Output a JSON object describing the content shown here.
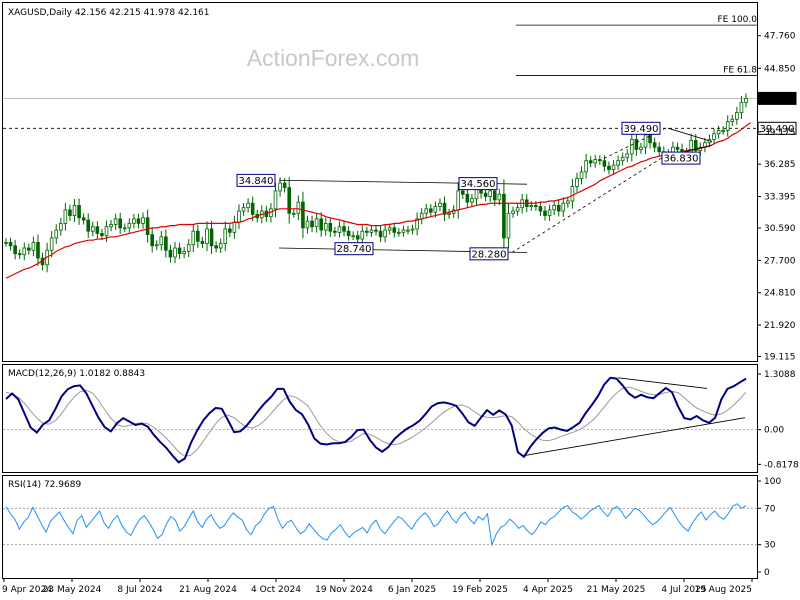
{
  "watermark": "ActionForex.com",
  "chart_data": [
    {
      "type": "candlestick",
      "title": "XAGUSD,Daily",
      "ohlc": {
        "open": "42.156",
        "high": "42.215",
        "low": "41.978",
        "close": "42.161"
      },
      "current_price": 42.161,
      "y_ticks": [
        19.115,
        21.92,
        24.81,
        27.7,
        30.59,
        33.395,
        36.285,
        39.175,
        44.85,
        47.76
      ],
      "ylim": [
        18.8,
        50.5
      ],
      "x_ticks": [
        "9 Apr 2024",
        "23 May 2024",
        "8 Jul 2024",
        "21 Aug 2024",
        "4 Oct 2024",
        "19 Nov 2024",
        "6 Jan 2025",
        "19 Feb 2025",
        "4 Apr 2025",
        "21 May 2025",
        "4 Jul 2025",
        "19 Aug 2025"
      ],
      "price_labels": [
        "34.840",
        "34.560",
        "28.740",
        "28.280",
        "39.490",
        "36.830",
        "39.490",
        "42.161"
      ],
      "fib_levels": [
        {
          "label": "FE 100.0",
          "value": 48.7
        },
        {
          "label": "FE 61.8",
          "value": 44.2
        }
      ],
      "close_series": [
        29.3,
        29.0,
        28.3,
        28.2,
        28.8,
        28.6,
        29.3,
        27.9,
        27.3,
        28.6,
        29.7,
        30.4,
        31.0,
        32.2,
        31.7,
        32.6,
        31.5,
        31.3,
        30.3,
        30.7,
        30.1,
        29.9,
        30.7,
        30.9,
        31.4,
        30.6,
        30.6,
        31.0,
        31.4,
        31.0,
        31.5,
        30.0,
        29.0,
        29.1,
        29.8,
        28.6,
        28.0,
        28.8,
        28.3,
        28.5,
        29.1,
        30.3,
        29.4,
        29.2,
        30.5,
        29.0,
        28.8,
        29.2,
        30.5,
        30.2,
        31.1,
        32.1,
        32.4,
        32.8,
        31.8,
        31.5,
        32.1,
        31.6,
        32.3,
        33.9,
        34.6,
        34.2,
        31.9,
        31.9,
        32.9,
        30.6,
        31.2,
        30.7,
        31.4,
        30.4,
        31.0,
        30.3,
        30.2,
        30.7,
        30.3,
        29.9,
        29.9,
        29.6,
        30.3,
        30.2,
        30.4,
        30.3,
        29.8,
        30.4,
        30.6,
        30.2,
        30.2,
        30.4,
        30.4,
        30.5,
        31.4,
        31.9,
        32.3,
        32.0,
        32.5,
        32.8,
        31.8,
        31.9,
        32.2,
        33.9,
        33.6,
        32.9,
        33.2,
        34.3,
        33.7,
        33.4,
        33.9,
        33.1,
        33.6,
        29.7,
        31.9,
        32.1,
        32.4,
        33.1,
        32.5,
        32.6,
        32.5,
        32.1,
        31.7,
        32.2,
        32.6,
        32.1,
        32.8,
        33.0,
        34.3,
        35.0,
        35.6,
        36.6,
        36.4,
        36.7,
        36.6,
        36.1,
        35.8,
        36.2,
        36.6,
        36.9,
        37.2,
        38.5,
        37.6,
        37.8,
        38.9,
        38.2,
        37.8,
        37.4,
        36.9,
        37.2,
        37.8,
        37.6,
        36.9,
        37.3,
        38.4,
        37.5,
        37.8,
        38.2,
        38.5,
        39.0,
        39.3,
        39.3,
        40.1,
        40.3,
        40.9,
        41.8,
        42.16
      ],
      "sma_series": [
        26.1,
        26.3,
        26.5,
        26.7,
        26.9,
        27.0,
        27.2,
        27.4,
        27.7,
        28.0,
        28.2,
        28.5,
        28.7,
        28.9,
        29.0,
        29.2,
        29.3,
        29.4,
        29.5,
        29.5,
        29.6,
        29.6,
        29.7,
        29.8,
        29.8,
        29.9,
        30.0,
        30.1,
        30.2,
        30.3,
        30.4,
        30.5,
        30.6,
        30.6,
        30.7,
        30.7,
        30.8,
        30.8,
        30.9,
        30.9,
        30.9,
        30.9,
        31.0,
        31.0,
        31.0,
        31.0,
        31.0,
        31.0,
        31.0,
        31.0,
        31.1,
        31.1,
        31.2,
        31.4,
        31.5,
        31.7,
        31.8,
        31.9,
        32.0,
        32.2,
        32.3,
        32.3,
        32.3,
        32.3,
        32.3,
        32.2,
        32.1,
        32.0,
        31.9,
        31.8,
        31.6,
        31.5,
        31.4,
        31.3,
        31.2,
        31.1,
        31.0,
        30.9,
        30.9,
        30.9,
        30.8,
        30.8,
        30.8,
        30.9,
        30.9,
        31.0,
        31.0,
        31.1,
        31.2,
        31.2,
        31.3,
        31.4,
        31.5,
        31.6,
        31.7,
        31.8,
        31.9,
        32.0,
        32.1,
        32.2,
        32.3,
        32.4,
        32.5,
        32.6,
        32.7,
        32.7,
        32.8,
        32.8,
        32.8,
        32.8,
        32.8,
        32.8,
        32.8,
        32.8,
        32.8,
        32.8,
        32.8,
        32.9,
        32.9,
        33.0,
        33.0,
        33.1,
        33.2,
        33.3,
        33.5,
        33.7,
        33.9,
        34.1,
        34.3,
        34.5,
        34.8,
        35.0,
        35.2,
        35.4,
        35.6,
        35.8,
        36.0,
        36.1,
        36.3,
        36.5,
        36.6,
        36.8,
        36.9,
        37.0,
        37.1,
        37.2,
        37.3,
        37.3,
        37.4,
        37.5,
        37.6,
        37.6,
        37.7,
        37.8,
        37.9,
        38.1,
        38.3,
        38.4,
        38.6,
        38.9,
        39.1,
        39.4,
        39.7,
        40.0
      ]
    },
    {
      "type": "line",
      "title": "MACD(12,26,9) 1.0182 0.8843",
      "y_ticks": [
        "1.3088",
        "0.00",
        "-0.8178"
      ],
      "ylim": [
        -0.95,
        1.45
      ],
      "macd_series": [
        0.72,
        0.85,
        0.71,
        0.38,
        0.05,
        -0.07,
        0.12,
        0.22,
        0.48,
        0.78,
        0.95,
        1.02,
        1.04,
        0.86,
        0.57,
        0.28,
        0.06,
        -0.04,
        0.15,
        0.27,
        0.19,
        0.11,
        0.14,
        0.07,
        -0.13,
        -0.29,
        -0.43,
        -0.61,
        -0.77,
        -0.68,
        -0.31,
        -0.02,
        0.22,
        0.39,
        0.51,
        0.49,
        0.22,
        -0.06,
        -0.04,
        0.09,
        0.27,
        0.46,
        0.63,
        0.77,
        0.96,
        0.96,
        0.66,
        0.46,
        0.36,
        0.12,
        -0.21,
        -0.33,
        -0.35,
        -0.32,
        -0.32,
        -0.29,
        -0.17,
        -0.01,
        0.0,
        -0.24,
        -0.42,
        -0.52,
        -0.41,
        -0.22,
        -0.09,
        0.02,
        0.1,
        0.2,
        0.36,
        0.54,
        0.62,
        0.64,
        0.61,
        0.56,
        0.38,
        0.17,
        0.09,
        0.28,
        0.46,
        0.35,
        0.45,
        0.36,
        0.1,
        -0.53,
        -0.64,
        -0.41,
        -0.23,
        -0.08,
        0.03,
        0.05,
        0.0,
        -0.03,
        0.06,
        0.16,
        0.39,
        0.58,
        0.79,
        1.06,
        1.22,
        1.2,
        1.04,
        0.85,
        0.75,
        0.82,
        0.76,
        0.74,
        0.86,
        0.98,
        0.88,
        0.54,
        0.27,
        0.24,
        0.32,
        0.22,
        0.16,
        0.28,
        0.71,
        0.96,
        1.02,
        1.11,
        1.2
      ],
      "signal_series": [
        0.88,
        0.84,
        0.76,
        0.62,
        0.44,
        0.27,
        0.15,
        0.13,
        0.21,
        0.37,
        0.58,
        0.76,
        0.89,
        0.93,
        0.86,
        0.69,
        0.47,
        0.27,
        0.12,
        0.07,
        0.1,
        0.14,
        0.16,
        0.14,
        0.05,
        -0.07,
        -0.2,
        -0.36,
        -0.52,
        -0.63,
        -0.6,
        -0.47,
        -0.27,
        -0.06,
        0.14,
        0.29,
        0.34,
        0.28,
        0.16,
        0.06,
        0.04,
        0.1,
        0.22,
        0.38,
        0.55,
        0.7,
        0.8,
        0.76,
        0.67,
        0.55,
        0.32,
        0.09,
        -0.09,
        -0.22,
        -0.29,
        -0.31,
        -0.27,
        -0.18,
        -0.09,
        -0.11,
        -0.18,
        -0.27,
        -0.33,
        -0.36,
        -0.32,
        -0.25,
        -0.17,
        -0.07,
        0.04,
        0.16,
        0.29,
        0.41,
        0.5,
        0.57,
        0.58,
        0.52,
        0.42,
        0.32,
        0.29,
        0.28,
        0.3,
        0.33,
        0.31,
        0.18,
        0.02,
        -0.1,
        -0.19,
        -0.25,
        -0.26,
        -0.22,
        -0.16,
        -0.11,
        -0.06,
        0.0,
        0.09,
        0.2,
        0.35,
        0.53,
        0.71,
        0.86,
        0.97,
        1.0,
        0.96,
        0.9,
        0.85,
        0.82,
        0.83,
        0.87,
        0.9,
        0.87,
        0.75,
        0.62,
        0.51,
        0.44,
        0.38,
        0.34,
        0.37,
        0.45,
        0.58,
        0.72,
        0.88
      ]
    },
    {
      "type": "line",
      "title": "RSI(14) 72.9689",
      "y_ticks": [
        "100",
        "70",
        "30",
        "0"
      ],
      "ylim": [
        0,
        100
      ],
      "values": [
        72,
        64,
        58,
        47,
        55,
        60,
        71,
        62,
        52,
        44,
        56,
        61,
        66,
        57,
        49,
        42,
        57,
        62,
        49,
        55,
        61,
        67,
        54,
        48,
        57,
        62,
        51,
        44,
        40,
        50,
        58,
        62,
        55,
        47,
        37,
        41,
        53,
        61,
        57,
        45,
        50,
        59,
        67,
        55,
        49,
        58,
        63,
        54,
        48,
        51,
        59,
        65,
        60,
        57,
        46,
        41,
        51,
        55,
        64,
        70,
        72,
        58,
        48,
        54,
        57,
        49,
        42,
        45,
        53,
        47,
        41,
        37,
        35,
        43,
        47,
        52,
        44,
        38,
        43,
        46,
        49,
        43,
        52,
        57,
        47,
        42,
        49,
        55,
        61,
        58,
        52,
        47,
        55,
        61,
        65,
        59,
        50,
        53,
        61,
        67,
        59,
        54,
        62,
        66,
        58,
        53,
        61,
        57,
        64,
        30,
        42,
        49,
        52,
        58,
        54,
        48,
        51,
        45,
        41,
        47,
        55,
        52,
        58,
        61,
        66,
        71,
        73,
        66,
        63,
        58,
        62,
        67,
        70,
        73,
        66,
        61,
        69,
        72,
        67,
        59,
        64,
        70,
        68,
        63,
        57,
        52,
        55,
        60,
        66,
        71,
        63,
        55,
        49,
        45,
        54,
        61,
        66,
        57,
        63,
        67,
        61,
        58,
        64,
        72,
        75,
        70,
        73
      ]
    }
  ]
}
